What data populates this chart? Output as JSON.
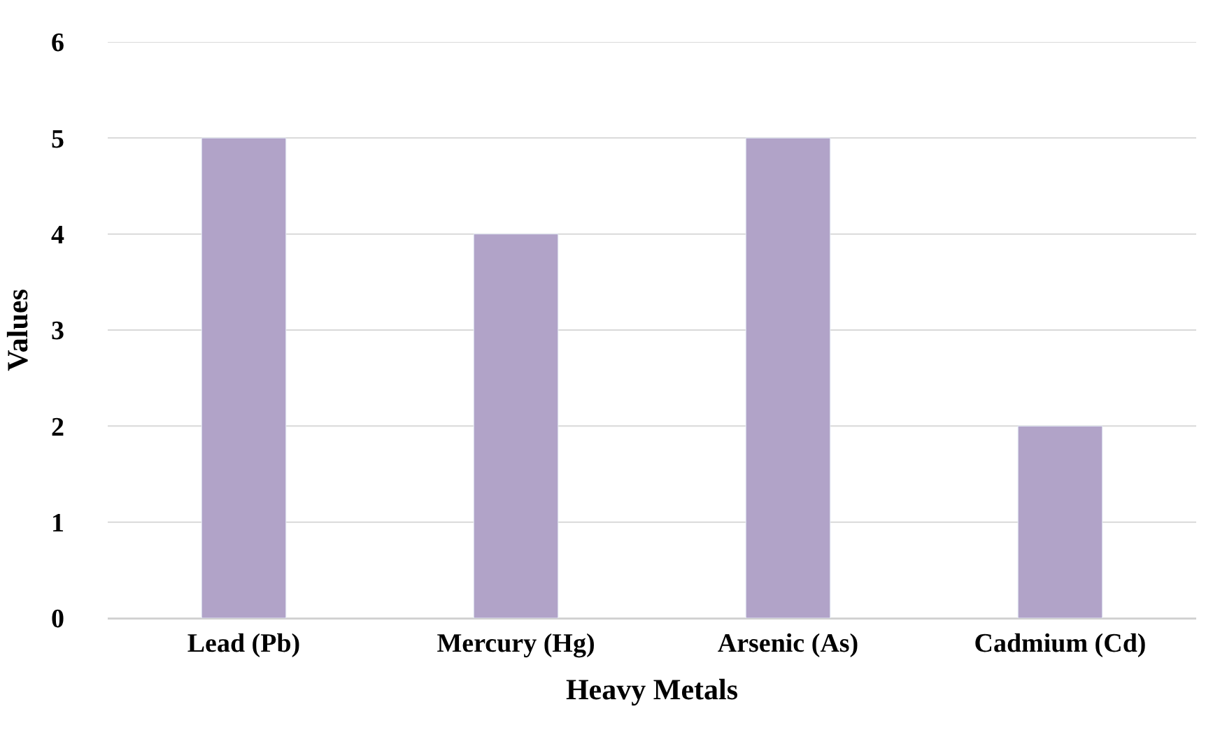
{
  "chart_data": {
    "type": "bar",
    "xlabel": "Heavy Metals",
    "ylabel": "Values",
    "categories": [
      "Lead (Pb)",
      "Mercury (Hg)",
      "Arsenic (As)",
      "Cadmium (Cd)"
    ],
    "values": [
      5,
      4,
      5,
      2
    ],
    "color": "#b1a3c8",
    "ylim": [
      0,
      6
    ],
    "yticks": [
      0,
      1,
      2,
      3,
      4,
      5,
      6
    ],
    "grid": "y"
  }
}
